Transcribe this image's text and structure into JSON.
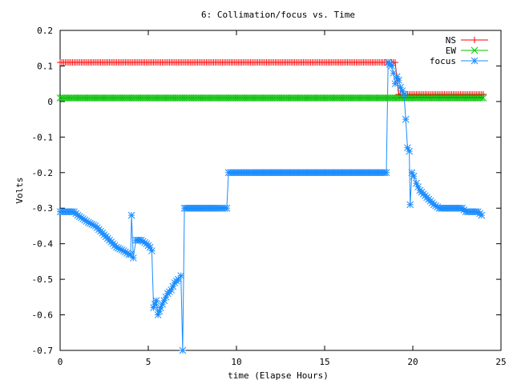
{
  "chart_data": {
    "type": "line",
    "title": "6: Collimation/focus vs. Time",
    "xlabel": "time (Elapse Hours)",
    "ylabel": "Volts",
    "xlim": [
      0,
      25
    ],
    "ylim": [
      -0.7,
      0.2
    ],
    "grid": false,
    "legend_position": "top-right",
    "x_ticks": [
      0,
      5,
      10,
      15,
      20,
      25
    ],
    "y_ticks": [
      -0.7,
      -0.6,
      -0.5,
      -0.4,
      -0.3,
      -0.2,
      -0.1,
      0,
      0.1,
      0.2
    ],
    "x_tick_labels": [
      "0",
      "5",
      "10",
      "15",
      "20",
      "25"
    ],
    "y_tick_labels": [
      "-0.7",
      "-0.6",
      "-0.5",
      "-0.4",
      "-0.3",
      "-0.2",
      "-0.1",
      "0",
      "0.1",
      "0.2"
    ],
    "series": [
      {
        "name": "NS",
        "color": "#ff0000",
        "marker": "plus",
        "points": [
          [
            0,
            0.11
          ],
          [
            18.6,
            0.11
          ],
          [
            18.8,
            0.11
          ],
          [
            19.0,
            0.11
          ],
          [
            19.2,
            0.02
          ],
          [
            19.5,
            0.02
          ],
          [
            21.0,
            0.02
          ],
          [
            22.5,
            0.02
          ],
          [
            24.0,
            0.02
          ]
        ]
      },
      {
        "name": "EW",
        "color": "#00c000",
        "marker": "cross",
        "points": [
          [
            0,
            0.01
          ],
          [
            24.0,
            0.01
          ]
        ]
      },
      {
        "name": "focus",
        "color": "#1a8cff",
        "marker": "star",
        "points": [
          [
            0,
            -0.31
          ],
          [
            0.5,
            -0.31
          ],
          [
            0.8,
            -0.31
          ],
          [
            1.0,
            -0.32
          ],
          [
            1.3,
            -0.33
          ],
          [
            1.6,
            -0.34
          ],
          [
            2.0,
            -0.35
          ],
          [
            2.4,
            -0.37
          ],
          [
            2.8,
            -0.39
          ],
          [
            3.2,
            -0.41
          ],
          [
            3.6,
            -0.42
          ],
          [
            3.9,
            -0.43
          ],
          [
            4.0,
            -0.43
          ],
          [
            4.05,
            -0.32
          ],
          [
            4.15,
            -0.44
          ],
          [
            4.3,
            -0.39
          ],
          [
            4.6,
            -0.39
          ],
          [
            4.9,
            -0.4
          ],
          [
            5.1,
            -0.41
          ],
          [
            5.2,
            -0.42
          ],
          [
            5.3,
            -0.58
          ],
          [
            5.45,
            -0.56
          ],
          [
            5.55,
            -0.6
          ],
          [
            5.7,
            -0.58
          ],
          [
            5.9,
            -0.56
          ],
          [
            6.1,
            -0.54
          ],
          [
            6.3,
            -0.53
          ],
          [
            6.5,
            -0.51
          ],
          [
            6.7,
            -0.5
          ],
          [
            6.85,
            -0.49
          ],
          [
            6.95,
            -0.7
          ],
          [
            7.05,
            -0.3
          ],
          [
            8.0,
            -0.3
          ],
          [
            9.0,
            -0.3
          ],
          [
            9.45,
            -0.3
          ],
          [
            9.55,
            -0.2
          ],
          [
            11.0,
            -0.2
          ],
          [
            13.0,
            -0.2
          ],
          [
            15.0,
            -0.2
          ],
          [
            17.0,
            -0.2
          ],
          [
            18.0,
            -0.2
          ],
          [
            18.5,
            -0.2
          ],
          [
            18.6,
            0.11
          ],
          [
            18.8,
            0.1
          ],
          [
            18.9,
            0.08
          ],
          [
            19.0,
            0.05
          ],
          [
            19.1,
            0.07
          ],
          [
            19.2,
            0.06
          ],
          [
            19.3,
            0.04
          ],
          [
            19.4,
            0.03
          ],
          [
            19.5,
            0.02
          ],
          [
            19.6,
            -0.05
          ],
          [
            19.7,
            -0.13
          ],
          [
            19.8,
            -0.14
          ],
          [
            19.85,
            -0.29
          ],
          [
            19.95,
            -0.2
          ],
          [
            20.05,
            -0.21
          ],
          [
            20.2,
            -0.23
          ],
          [
            20.4,
            -0.25
          ],
          [
            20.6,
            -0.26
          ],
          [
            20.8,
            -0.27
          ],
          [
            21.0,
            -0.28
          ],
          [
            21.2,
            -0.29
          ],
          [
            21.5,
            -0.3
          ],
          [
            22.0,
            -0.3
          ],
          [
            22.5,
            -0.3
          ],
          [
            22.8,
            -0.3
          ],
          [
            23.0,
            -0.31
          ],
          [
            23.4,
            -0.31
          ],
          [
            23.7,
            -0.31
          ],
          [
            23.9,
            -0.32
          ]
        ]
      }
    ]
  }
}
